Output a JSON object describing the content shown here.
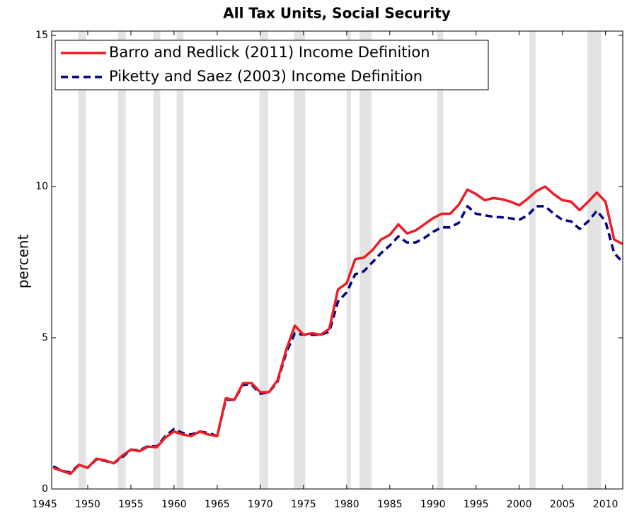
{
  "chart_data": {
    "type": "line",
    "title": "All Tax Units, Social Security",
    "y_label": "percent",
    "x": [
      1946,
      1947,
      1948,
      1949,
      1950,
      1951,
      1952,
      1953,
      1954,
      1955,
      1956,
      1957,
      1958,
      1959,
      1960,
      1961,
      1962,
      1963,
      1964,
      1965,
      1966,
      1967,
      1968,
      1969,
      1970,
      1971,
      1972,
      1973,
      1974,
      1975,
      1976,
      1977,
      1978,
      1979,
      1980,
      1981,
      1982,
      1983,
      1984,
      1985,
      1986,
      1987,
      1988,
      1989,
      1990,
      1991,
      1992,
      1993,
      1994,
      1995,
      1996,
      1997,
      1998,
      1999,
      2000,
      2001,
      2002,
      2003,
      2004,
      2005,
      2006,
      2007,
      2008,
      2009,
      2010,
      2011,
      2012
    ],
    "series": [
      {
        "name": "Barro and Redlick (2011) Income Definition",
        "color": "#ee1c24",
        "dashed": false,
        "values": [
          0.7,
          0.6,
          0.5,
          0.8,
          0.7,
          1.0,
          0.95,
          0.85,
          1.1,
          1.3,
          1.25,
          1.4,
          1.38,
          1.7,
          1.9,
          1.8,
          1.75,
          1.9,
          1.8,
          1.75,
          3.0,
          2.95,
          3.5,
          3.5,
          3.2,
          3.2,
          3.6,
          4.6,
          5.4,
          5.1,
          5.15,
          5.1,
          5.3,
          6.6,
          6.8,
          7.6,
          7.65,
          7.9,
          8.25,
          8.4,
          8.75,
          8.45,
          8.55,
          8.75,
          8.95,
          9.1,
          9.1,
          9.4,
          9.9,
          9.75,
          9.55,
          9.62,
          9.58,
          9.5,
          9.38,
          9.6,
          9.85,
          10.0,
          9.75,
          9.55,
          9.5,
          9.22,
          9.5,
          9.8,
          9.5,
          8.25,
          8.1
        ]
      },
      {
        "name": "Piketty and Saez (2003) Income Definition",
        "color": "#000080",
        "dashed": true,
        "values": [
          0.75,
          0.6,
          0.55,
          0.8,
          0.7,
          0.98,
          0.93,
          0.85,
          1.05,
          1.3,
          1.28,
          1.42,
          1.4,
          1.75,
          1.98,
          1.85,
          1.8,
          1.9,
          1.85,
          1.75,
          2.95,
          2.95,
          3.45,
          3.45,
          3.15,
          3.2,
          3.55,
          4.5,
          5.15,
          5.1,
          5.1,
          5.1,
          5.2,
          6.2,
          6.5,
          7.1,
          7.2,
          7.5,
          7.8,
          8.05,
          8.35,
          8.15,
          8.15,
          8.3,
          8.5,
          8.65,
          8.65,
          8.8,
          9.35,
          9.1,
          9.05,
          9.0,
          8.98,
          8.95,
          8.9,
          9.05,
          9.35,
          9.35,
          9.1,
          8.9,
          8.85,
          8.6,
          8.85,
          9.2,
          8.85,
          7.8,
          7.5
        ]
      }
    ],
    "recessions": [
      [
        1948.9,
        1949.8
      ],
      [
        1953.5,
        1954.4
      ],
      [
        1957.6,
        1958.4
      ],
      [
        1960.3,
        1961.1
      ],
      [
        1969.9,
        1970.9
      ],
      [
        1973.9,
        1975.2
      ],
      [
        1980.0,
        1980.5
      ],
      [
        1981.5,
        1982.9
      ],
      [
        1990.5,
        1991.2
      ],
      [
        2001.2,
        2001.9
      ],
      [
        2007.9,
        2009.5
      ]
    ],
    "recession_color": "#e3e3e3",
    "xlim": [
      1945,
      2012
    ],
    "xticks": [
      1945,
      1950,
      1955,
      1960,
      1965,
      1970,
      1975,
      1980,
      1985,
      1990,
      1995,
      2000,
      2005,
      2010
    ],
    "ylim": [
      0,
      15
    ],
    "yticks": [
      0,
      5,
      10,
      15
    ],
    "legend": "upper left"
  }
}
